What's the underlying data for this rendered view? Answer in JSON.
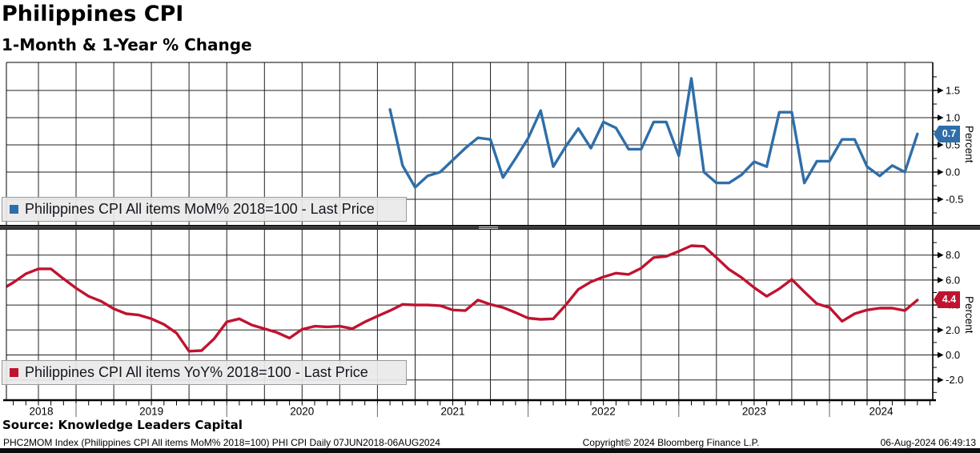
{
  "header": {
    "title": "Philippines CPI",
    "subtitle": "1-Month & 1-Year % Change"
  },
  "x_axis": {
    "year_labels": [
      "2018",
      "2019",
      "2020",
      "2021",
      "2022",
      "2023",
      "2024"
    ]
  },
  "footer": {
    "source": "Source: Knowledge Leaders Capital",
    "index_line": "PHC2MOM Index (Philippines CPI All items MoM% 2018=100) PHI CPI  Daily 07JUN2018-06AUG2024",
    "copyright": "Copyright© 2024 Bloomberg Finance L.P.",
    "timestamp": "06-Aug-2024 06:49:13"
  },
  "chart_data": [
    {
      "type": "line",
      "panel": "top",
      "legend": "Philippines CPI All items MoM% 2018=100 - Last Price",
      "series_name": "Philippines CPI All items MoM% 2018=100",
      "color": "#2f6ea9",
      "last_price": "0.7",
      "ylabel": "Percent",
      "ylim": [
        -0.97,
        2.02
      ],
      "yticks": [
        1.5,
        1.0,
        0.5,
        0.0,
        -0.5
      ],
      "ytick_labels": [
        "1.5",
        "1.0",
        "0.5",
        "0.0",
        "-0.5"
      ],
      "frequency": "monthly",
      "start": {
        "year": 2021,
        "month": 1
      },
      "end": {
        "year": 2024,
        "month": 7
      },
      "values": [
        1.15,
        0.12,
        -0.28,
        -0.07,
        0.0,
        0.22,
        0.44,
        0.63,
        0.6,
        -0.1,
        0.25,
        0.62,
        1.13,
        0.1,
        0.47,
        0.8,
        0.44,
        0.92,
        0.81,
        0.42,
        0.42,
        0.92,
        0.92,
        0.3,
        1.72,
        0.0,
        -0.2,
        -0.2,
        -0.05,
        0.19,
        0.1,
        1.1,
        1.1,
        -0.2,
        0.2,
        0.2,
        0.6,
        0.6,
        0.1,
        -0.07,
        0.12,
        0.0,
        0.7
      ]
    },
    {
      "type": "line",
      "panel": "bottom",
      "legend": "Philippines CPI All items YoY% 2018=100 - Last Price",
      "series_name": "Philippines CPI All items YoY% 2018=100",
      "color": "#c01330",
      "last_price": "4.4",
      "ylabel": "Percent",
      "ylim": [
        -3.6,
        10.1
      ],
      "yticks": [
        8.0,
        6.0,
        4.0,
        2.0,
        0.0,
        -2.0
      ],
      "ytick_labels": [
        "8.0",
        "6.0",
        "4.0",
        "2.0",
        "0.0",
        "-2.0"
      ],
      "frequency": "monthly",
      "start": {
        "year": 2018,
        "month": 6
      },
      "end": {
        "year": 2024,
        "month": 7
      },
      "values": [
        5.2,
        5.8,
        6.5,
        6.9,
        6.9,
        6.1,
        5.35,
        4.7,
        4.3,
        3.7,
        3.3,
        3.2,
        2.9,
        2.45,
        1.75,
        0.3,
        0.35,
        1.3,
        2.65,
        2.9,
        2.4,
        2.1,
        1.8,
        1.35,
        2.05,
        2.3,
        2.25,
        2.3,
        2.1,
        2.65,
        3.1,
        3.55,
        4.05,
        4.0,
        4.0,
        3.95,
        3.6,
        3.55,
        4.4,
        4.05,
        3.8,
        3.4,
        2.95,
        2.85,
        2.9,
        4.0,
        5.25,
        5.85,
        6.25,
        6.55,
        6.45,
        6.95,
        7.8,
        7.9,
        8.3,
        8.75,
        8.7,
        7.8,
        6.85,
        6.2,
        5.4,
        4.7,
        5.3,
        6.05,
        5.05,
        4.1,
        3.8,
        2.7,
        3.3,
        3.6,
        3.75,
        3.75,
        3.55,
        4.4
      ]
    }
  ]
}
